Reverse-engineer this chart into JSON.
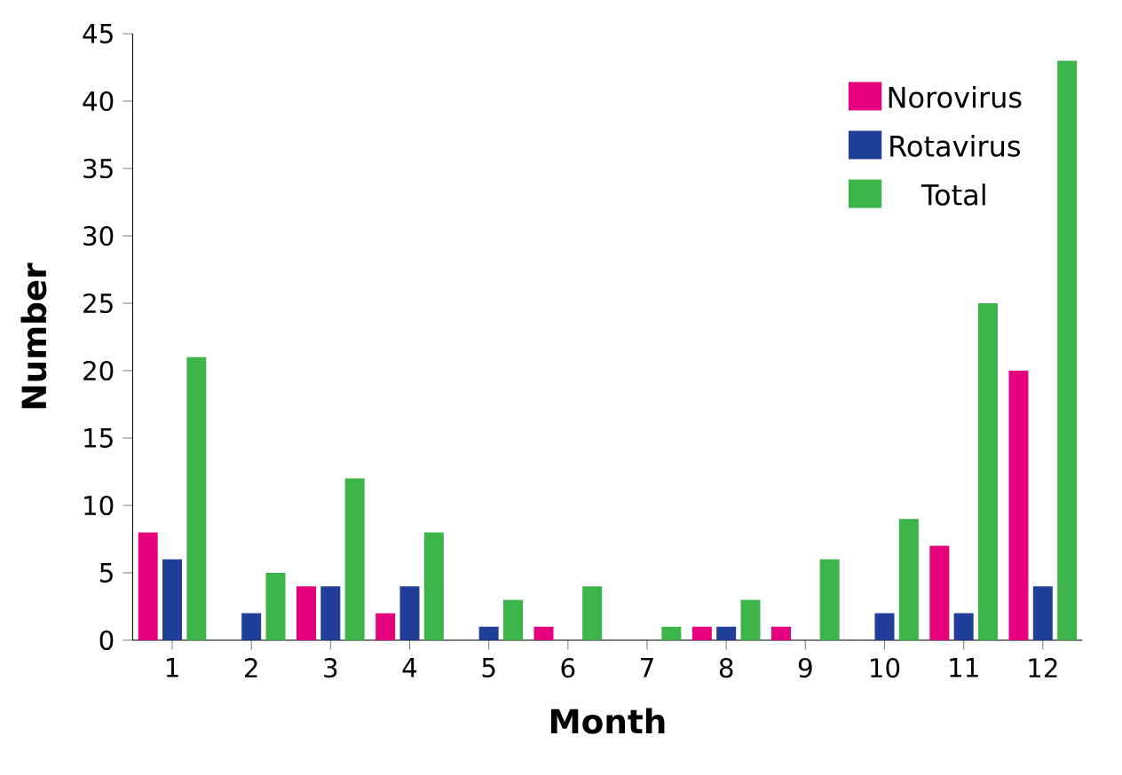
{
  "chart_data": {
    "type": "bar",
    "xlabel": "Month",
    "ylabel": "Number",
    "categories": [
      "1",
      "2",
      "3",
      "4",
      "5",
      "6",
      "7",
      "8",
      "9",
      "10",
      "11",
      "12"
    ],
    "series": [
      {
        "name": "Norovirus",
        "color": "#e6007e",
        "values": [
          8,
          0,
          4,
          2,
          0,
          1,
          0,
          1,
          1,
          0,
          7,
          20
        ]
      },
      {
        "name": "Rotavirus",
        "color": "#1f3f99",
        "values": [
          6,
          2,
          4,
          4,
          1,
          0,
          0,
          1,
          0,
          2,
          2,
          4
        ]
      },
      {
        "name": "Total",
        "color": "#3cb44a",
        "values": [
          21,
          5,
          12,
          8,
          3,
          4,
          1,
          3,
          6,
          9,
          25,
          43
        ]
      }
    ],
    "ylim": [
      0,
      45
    ],
    "yticks": [
      0,
      5,
      10,
      15,
      20,
      25,
      30,
      35,
      40,
      45
    ],
    "grid": false,
    "legend": "top right"
  }
}
